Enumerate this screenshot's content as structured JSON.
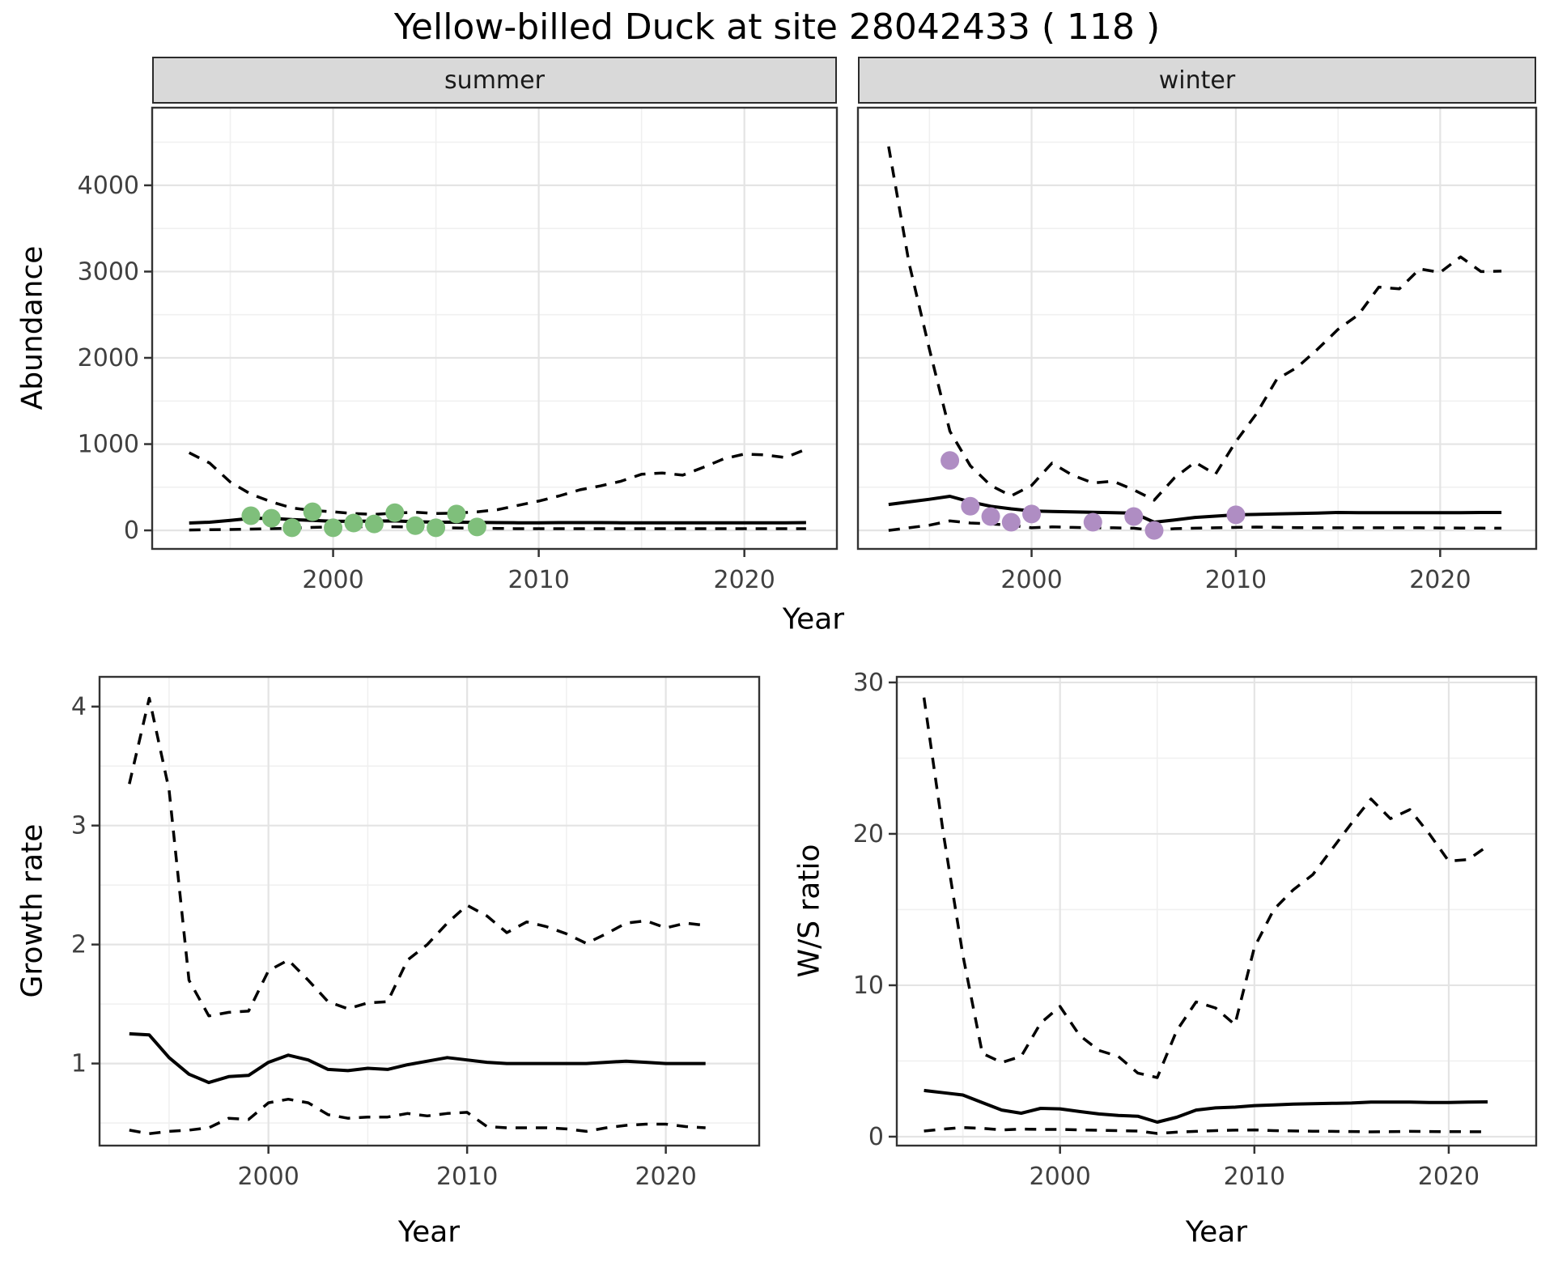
{
  "title": "Yellow-billed Duck at site 28042433 ( 118 )",
  "colors": {
    "summer_point": "#7fbf7b",
    "winter_point": "#af8dc3",
    "line": "#000000",
    "strip_bg": "#d9d9d9",
    "grid_major": "#e4e4e4",
    "grid_minor": "#f0f0f0",
    "panel_border": "#333333",
    "tick_text": "#404040"
  },
  "chart_data": [
    {
      "id": "abundance-summer",
      "type": "line",
      "facet_label": "summer",
      "xlabel": "Year",
      "ylabel": "Abundance",
      "xlim": [
        1991.2,
        2024.5
      ],
      "ylim": [
        -215,
        4900
      ],
      "x_ticks": [
        2000,
        2010,
        2020
      ],
      "x_minor": [
        1995,
        2005,
        2015
      ],
      "y_ticks": [
        0,
        1000,
        2000,
        3000,
        4000
      ],
      "y_minor": [
        500,
        1500,
        2500,
        3500,
        4500
      ],
      "years": [
        1993,
        1994,
        1995,
        1996,
        1997,
        1998,
        1999,
        2000,
        2001,
        2002,
        2003,
        2004,
        2005,
        2006,
        2007,
        2008,
        2009,
        2010,
        2011,
        2012,
        2013,
        2014,
        2015,
        2016,
        2017,
        2018,
        2019,
        2020,
        2021,
        2022,
        2023
      ],
      "series": [
        {
          "name": "upper CI",
          "style": "dashed",
          "values": [
            900,
            780,
            560,
            420,
            330,
            260,
            230,
            215,
            195,
            185,
            200,
            210,
            195,
            200,
            215,
            240,
            290,
            340,
            400,
            470,
            515,
            570,
            650,
            665,
            640,
            730,
            830,
            885,
            875,
            845,
            940
          ]
        },
        {
          "name": "median",
          "style": "solid",
          "values": [
            85,
            95,
            115,
            140,
            140,
            125,
            115,
            105,
            105,
            108,
            110,
            100,
            95,
            95,
            92,
            90,
            88,
            88,
            90,
            90,
            90,
            88,
            88,
            88,
            88,
            88,
            88,
            88,
            88,
            88,
            90
          ]
        },
        {
          "name": "lower CI",
          "style": "dashed",
          "values": [
            5,
            8,
            10,
            15,
            20,
            25,
            35,
            40,
            42,
            40,
            42,
            38,
            30,
            28,
            25,
            22,
            20,
            20,
            20,
            20,
            20,
            20,
            20,
            20,
            20,
            20,
            20,
            20,
            20,
            20,
            20
          ]
        }
      ],
      "points": {
        "name": "observed summer counts",
        "color_key": "summer_point",
        "years": [
          1996,
          1997,
          1998,
          1999,
          2000,
          2001,
          2002,
          2003,
          2004,
          2005,
          2006,
          2007
        ],
        "values": [
          170,
          140,
          30,
          215,
          30,
          85,
          75,
          205,
          55,
          30,
          190,
          40
        ]
      }
    },
    {
      "id": "abundance-winter",
      "type": "line",
      "facet_label": "winter",
      "xlabel": "Year",
      "ylabel": "Abundance",
      "xlim": [
        1991.5,
        2024.7
      ],
      "ylim": [
        -215,
        4900
      ],
      "x_ticks": [
        2000,
        2010,
        2020
      ],
      "x_minor": [
        1995,
        2005,
        2015
      ],
      "y_ticks": [
        0,
        1000,
        2000,
        3000,
        4000
      ],
      "y_minor": [
        500,
        1500,
        2500,
        3500,
        4500
      ],
      "years": [
        1993,
        1994,
        1995,
        1996,
        1997,
        1998,
        1999,
        2000,
        2001,
        2002,
        2003,
        2004,
        2005,
        2006,
        2007,
        2008,
        2009,
        2010,
        2011,
        2012,
        2013,
        2014,
        2015,
        2016,
        2017,
        2018,
        2019,
        2020,
        2021,
        2022,
        2023
      ],
      "series": [
        {
          "name": "upper CI",
          "style": "dashed",
          "values": [
            4450,
            3100,
            2100,
            1150,
            750,
            520,
            400,
            520,
            780,
            640,
            550,
            570,
            470,
            350,
            610,
            790,
            650,
            1030,
            1350,
            1750,
            1890,
            2100,
            2330,
            2500,
            2820,
            2800,
            3030,
            2990,
            3170,
            3000,
            3005
          ]
        },
        {
          "name": "median",
          "style": "solid",
          "values": [
            300,
            330,
            360,
            395,
            330,
            280,
            250,
            225,
            220,
            215,
            210,
            205,
            200,
            95,
            120,
            150,
            165,
            180,
            185,
            190,
            195,
            200,
            207,
            205,
            205,
            205,
            205,
            205,
            205,
            207,
            207
          ]
        },
        {
          "name": "lower CI",
          "style": "dashed",
          "values": [
            0,
            30,
            60,
            110,
            85,
            75,
            60,
            30,
            40,
            35,
            30,
            30,
            25,
            0,
            20,
            25,
            30,
            35,
            38,
            35,
            32,
            30,
            30,
            30,
            30,
            30,
            30,
            28,
            27,
            26,
            25
          ]
        }
      ],
      "points": {
        "name": "observed winter counts",
        "color_key": "winter_point",
        "years": [
          1996,
          1997,
          1998,
          1999,
          2000,
          2003,
          2005,
          2006,
          2010
        ],
        "values": [
          810,
          280,
          160,
          95,
          190,
          95,
          160,
          0,
          180
        ]
      }
    },
    {
      "id": "growth-rate",
      "type": "line",
      "facet_label": "",
      "xlabel": "Year",
      "ylabel": "Growth rate",
      "xlim": [
        1991.5,
        2024.7
      ],
      "ylim": [
        0.31,
        4.25
      ],
      "x_ticks": [
        2000,
        2010,
        2020
      ],
      "x_minor": [
        1995,
        2005,
        2015
      ],
      "y_ticks": [
        1,
        2,
        3,
        4
      ],
      "y_minor": [
        0.5,
        1.5,
        2.5,
        3.5
      ],
      "years": [
        1993,
        1994,
        1995,
        1996,
        1997,
        1998,
        1999,
        2000,
        2001,
        2002,
        2003,
        2004,
        2005,
        2006,
        2007,
        2008,
        2009,
        2010,
        2011,
        2012,
        2013,
        2014,
        2015,
        2016,
        2017,
        2018,
        2019,
        2020,
        2021,
        2022
      ],
      "series": [
        {
          "name": "upper CI",
          "style": "dashed",
          "values": [
            3.35,
            4.07,
            3.3,
            1.7,
            1.4,
            1.43,
            1.44,
            1.78,
            1.87,
            1.7,
            1.52,
            1.46,
            1.51,
            1.52,
            1.87,
            2.0,
            2.18,
            2.33,
            2.24,
            2.1,
            2.19,
            2.15,
            2.09,
            2.01,
            2.09,
            2.18,
            2.2,
            2.14,
            2.18,
            2.16
          ]
        },
        {
          "name": "median",
          "style": "solid",
          "values": [
            1.25,
            1.24,
            1.05,
            0.91,
            0.84,
            0.89,
            0.9,
            1.01,
            1.07,
            1.03,
            0.95,
            0.94,
            0.96,
            0.95,
            0.99,
            1.02,
            1.05,
            1.03,
            1.01,
            1.0,
            1.0,
            1.0,
            1.0,
            1.0,
            1.01,
            1.02,
            1.01,
            1.0,
            1.0,
            1.0
          ]
        },
        {
          "name": "lower CI",
          "style": "dashed",
          "values": [
            0.44,
            0.41,
            0.43,
            0.44,
            0.46,
            0.54,
            0.53,
            0.67,
            0.7,
            0.67,
            0.57,
            0.54,
            0.55,
            0.55,
            0.58,
            0.56,
            0.58,
            0.59,
            0.47,
            0.46,
            0.46,
            0.46,
            0.45,
            0.43,
            0.46,
            0.48,
            0.49,
            0.49,
            0.47,
            0.46
          ]
        }
      ],
      "points": null
    },
    {
      "id": "ws-ratio",
      "type": "line",
      "facet_label": "",
      "xlabel": "Year",
      "ylabel": "W/S ratio",
      "xlim": [
        1991.6,
        2024.5
      ],
      "ylim": [
        -0.59,
        30.37
      ],
      "x_ticks": [
        2000,
        2010,
        2020
      ],
      "x_minor": [
        1995,
        2005,
        2015
      ],
      "y_ticks": [
        0,
        10,
        20,
        30
      ],
      "y_minor": [
        5,
        15,
        25
      ],
      "years": [
        1993,
        1994,
        1995,
        1996,
        1997,
        1998,
        1999,
        2000,
        2001,
        2002,
        2003,
        2004,
        2005,
        2006,
        2007,
        2008,
        2009,
        2010,
        2011,
        2012,
        2013,
        2014,
        2015,
        2016,
        2017,
        2018,
        2019,
        2020,
        2021,
        2022
      ],
      "series": [
        {
          "name": "upper CI",
          "style": "dashed",
          "values": [
            29.0,
            20.0,
            12.0,
            5.5,
            4.9,
            5.3,
            7.5,
            8.6,
            6.7,
            5.7,
            5.3,
            4.2,
            3.9,
            7.0,
            8.9,
            8.5,
            7.4,
            12.5,
            15.0,
            16.3,
            17.3,
            19.0,
            20.7,
            22.3,
            21.0,
            21.6,
            20.0,
            18.2,
            18.3,
            19.2
          ]
        },
        {
          "name": "median",
          "style": "solid",
          "values": [
            3.05,
            2.9,
            2.75,
            2.25,
            1.76,
            1.55,
            1.87,
            1.84,
            1.66,
            1.5,
            1.4,
            1.35,
            0.96,
            1.28,
            1.76,
            1.9,
            1.95,
            2.05,
            2.1,
            2.15,
            2.18,
            2.2,
            2.22,
            2.28,
            2.28,
            2.28,
            2.26,
            2.26,
            2.28,
            2.3
          ]
        },
        {
          "name": "lower CI",
          "style": "dashed",
          "values": [
            0.37,
            0.5,
            0.6,
            0.55,
            0.45,
            0.5,
            0.48,
            0.48,
            0.45,
            0.42,
            0.4,
            0.37,
            0.21,
            0.3,
            0.35,
            0.4,
            0.43,
            0.45,
            0.4,
            0.38,
            0.36,
            0.35,
            0.34,
            0.32,
            0.33,
            0.35,
            0.34,
            0.33,
            0.33,
            0.32
          ]
        }
      ],
      "points": null
    }
  ]
}
